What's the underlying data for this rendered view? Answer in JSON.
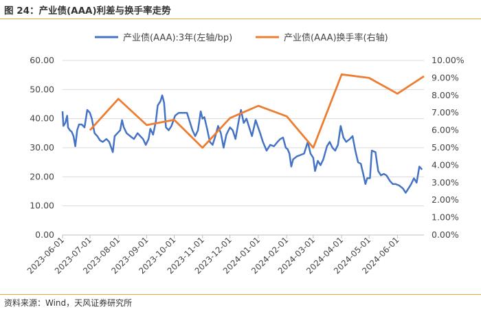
{
  "figure": {
    "title": "图 24：产业债(AAA)利差与换手率走势",
    "source": "资料来源：Wind，天风证券研究所"
  },
  "colors": {
    "spread": "#4472c4",
    "turnover": "#ed7d31",
    "rule": "#e8a33b",
    "grid": "#d9d9d9"
  },
  "chart_data": {
    "type": "line",
    "title": "",
    "xlabel": "",
    "ylabel": "",
    "x_ticks": [
      "2023-06-01",
      "2023-07-01",
      "2023-08-01",
      "2023-09-01",
      "2023-10-01",
      "2023-11-01",
      "2023-12-01",
      "2024-01-01",
      "2024-02-01",
      "2024-03-01",
      "2024-04-01",
      "2024-05-01",
      "2024-06-01"
    ],
    "x_range": [
      "2023-06-01",
      "2024-06-30"
    ],
    "ylim_left": [
      0,
      60
    ],
    "y_ticks_left": [
      "0.00",
      "10.00",
      "20.00",
      "30.00",
      "40.00",
      "50.00",
      "60.00"
    ],
    "ylim_right": [
      0,
      0.1
    ],
    "y_ticks_right": [
      "0.00%",
      "1.00%",
      "2.00%",
      "3.00%",
      "4.00%",
      "5.00%",
      "6.00%",
      "7.00%",
      "8.00%",
      "9.00%",
      "10.00%"
    ],
    "grid": true,
    "legend_position": "top",
    "series": [
      {
        "name": "产业债(AAA):3年(左轴/bp)",
        "axis": "left",
        "points": [
          [
            "2023-06-01",
            42.5
          ],
          [
            "2023-06-02",
            37.5
          ],
          [
            "2023-06-04",
            38.5
          ],
          [
            "2023-06-06",
            41.0
          ],
          [
            "2023-06-07",
            37.0
          ],
          [
            "2023-06-09",
            36.0
          ],
          [
            "2023-06-11",
            35.5
          ],
          [
            "2023-06-13",
            34.0
          ],
          [
            "2023-06-15",
            30.5
          ],
          [
            "2023-06-17",
            36.0
          ],
          [
            "2023-06-19",
            38.0
          ],
          [
            "2023-06-22",
            38.0
          ],
          [
            "2023-06-25",
            37.0
          ],
          [
            "2023-06-28",
            43.0
          ],
          [
            "2023-07-01",
            42.0
          ],
          [
            "2023-07-03",
            40.0
          ],
          [
            "2023-07-06",
            35.0
          ],
          [
            "2023-07-09",
            34.0
          ],
          [
            "2023-07-12",
            32.5
          ],
          [
            "2023-07-15",
            32.0
          ],
          [
            "2023-07-19",
            33.0
          ],
          [
            "2023-07-22",
            32.0
          ],
          [
            "2023-07-26",
            28.5
          ],
          [
            "2023-07-28",
            34.0
          ],
          [
            "2023-07-31",
            35.0
          ],
          [
            "2023-08-03",
            36.0
          ],
          [
            "2023-08-05",
            39.5
          ],
          [
            "2023-08-07",
            37.0
          ],
          [
            "2023-08-10",
            35.0
          ],
          [
            "2023-08-14",
            34.0
          ],
          [
            "2023-08-18",
            33.0
          ],
          [
            "2023-08-22",
            35.0
          ],
          [
            "2023-08-25",
            34.0
          ],
          [
            "2023-08-28",
            33.0
          ],
          [
            "2023-08-31",
            31.0
          ],
          [
            "2023-09-03",
            33.0
          ],
          [
            "2023-09-05",
            36.5
          ],
          [
            "2023-09-08",
            34.5
          ],
          [
            "2023-09-11",
            39.0
          ],
          [
            "2023-09-13",
            44.5
          ],
          [
            "2023-09-16",
            46.0
          ],
          [
            "2023-09-18",
            48.0
          ],
          [
            "2023-09-20",
            45.5
          ],
          [
            "2023-09-22",
            37.0
          ],
          [
            "2023-09-25",
            36.0
          ],
          [
            "2023-09-28",
            37.5
          ],
          [
            "2023-10-02",
            41.0
          ],
          [
            "2023-10-06",
            42.0
          ],
          [
            "2023-10-10",
            42.0
          ],
          [
            "2023-10-15",
            42.0
          ],
          [
            "2023-10-18",
            39.0
          ],
          [
            "2023-10-21",
            36.0
          ],
          [
            "2023-10-24",
            34.0
          ],
          [
            "2023-10-27",
            36.0
          ],
          [
            "2023-10-30",
            42.5
          ],
          [
            "2023-11-01",
            40.0
          ],
          [
            "2023-11-03",
            40.5
          ],
          [
            "2023-11-06",
            36.5
          ],
          [
            "2023-11-09",
            32.0
          ],
          [
            "2023-11-12",
            31.0
          ],
          [
            "2023-11-15",
            34.0
          ],
          [
            "2023-11-18",
            37.5
          ],
          [
            "2023-11-21",
            35.0
          ],
          [
            "2023-11-24",
            30.0
          ],
          [
            "2023-11-27",
            34.5
          ],
          [
            "2023-12-01",
            37.0
          ],
          [
            "2023-12-04",
            36.0
          ],
          [
            "2023-12-07",
            33.0
          ],
          [
            "2023-12-11",
            40.0
          ],
          [
            "2023-12-13",
            43.0
          ],
          [
            "2023-12-16",
            38.5
          ],
          [
            "2023-12-19",
            40.0
          ],
          [
            "2023-12-22",
            37.0
          ],
          [
            "2023-12-25",
            34.0
          ],
          [
            "2023-12-29",
            39.5
          ],
          [
            "2024-01-03",
            35.0
          ],
          [
            "2024-01-06",
            32.0
          ],
          [
            "2024-01-10",
            29.0
          ],
          [
            "2024-01-14",
            31.0
          ],
          [
            "2024-01-18",
            30.5
          ],
          [
            "2024-01-22",
            32.0
          ],
          [
            "2024-01-25",
            33.0
          ],
          [
            "2024-01-28",
            33.5
          ],
          [
            "2024-01-31",
            30.0
          ],
          [
            "2024-02-02",
            29.5
          ],
          [
            "2024-02-04",
            28.0
          ],
          [
            "2024-02-06",
            23.5
          ],
          [
            "2024-02-08",
            26.0
          ],
          [
            "2024-02-12",
            27.0
          ],
          [
            "2024-02-16",
            27.5
          ],
          [
            "2024-02-20",
            28.0
          ],
          [
            "2024-02-24",
            32.0
          ],
          [
            "2024-02-27",
            28.0
          ],
          [
            "2024-03-01",
            26.5
          ],
          [
            "2024-03-03",
            22.0
          ],
          [
            "2024-03-06",
            25.5
          ],
          [
            "2024-03-09",
            24.0
          ],
          [
            "2024-03-12",
            26.0
          ],
          [
            "2024-03-16",
            30.5
          ],
          [
            "2024-03-19",
            32.0
          ],
          [
            "2024-03-22",
            30.0
          ],
          [
            "2024-03-25",
            29.0
          ],
          [
            "2024-03-28",
            31.0
          ],
          [
            "2024-03-31",
            37.5
          ],
          [
            "2024-04-03",
            33.5
          ],
          [
            "2024-04-06",
            32.0
          ],
          [
            "2024-04-10",
            33.0
          ],
          [
            "2024-04-13",
            34.0
          ],
          [
            "2024-04-16",
            29.0
          ],
          [
            "2024-04-19",
            25.0
          ],
          [
            "2024-04-22",
            24.5
          ],
          [
            "2024-04-25",
            20.5
          ],
          [
            "2024-04-27",
            17.5
          ],
          [
            "2024-04-29",
            19.5
          ],
          [
            "2024-05-02",
            19.5
          ],
          [
            "2024-05-04",
            29.0
          ],
          [
            "2024-05-08",
            28.5
          ],
          [
            "2024-05-11",
            22.0
          ],
          [
            "2024-05-14",
            20.5
          ],
          [
            "2024-05-17",
            21.0
          ],
          [
            "2024-05-20",
            20.5
          ],
          [
            "2024-05-24",
            18.5
          ],
          [
            "2024-05-27",
            17.5
          ],
          [
            "2024-05-30",
            17.5
          ],
          [
            "2024-06-03",
            17.0
          ],
          [
            "2024-06-07",
            16.0
          ],
          [
            "2024-06-10",
            14.5
          ],
          [
            "2024-06-13",
            16.0
          ],
          [
            "2024-06-16",
            17.5
          ],
          [
            "2024-06-19",
            19.5
          ],
          [
            "2024-06-22",
            18.0
          ],
          [
            "2024-06-25",
            23.5
          ],
          [
            "2024-06-28",
            22.5
          ]
        ]
      },
      {
        "name": "产业债(AAA)换手率(右轴)",
        "axis": "right",
        "points": [
          [
            "2023-07-01",
            0.06
          ],
          [
            "2023-08-01",
            0.078
          ],
          [
            "2023-09-01",
            0.063
          ],
          [
            "2023-10-01",
            0.066
          ],
          [
            "2023-11-01",
            0.05
          ],
          [
            "2023-12-01",
            0.067
          ],
          [
            "2024-01-01",
            0.074
          ],
          [
            "2024-02-01",
            0.068
          ],
          [
            "2024-03-01",
            0.05
          ],
          [
            "2024-04-01",
            0.092
          ],
          [
            "2024-05-01",
            0.09
          ],
          [
            "2024-06-01",
            0.081
          ],
          [
            "2024-06-30",
            0.091
          ]
        ]
      }
    ]
  }
}
